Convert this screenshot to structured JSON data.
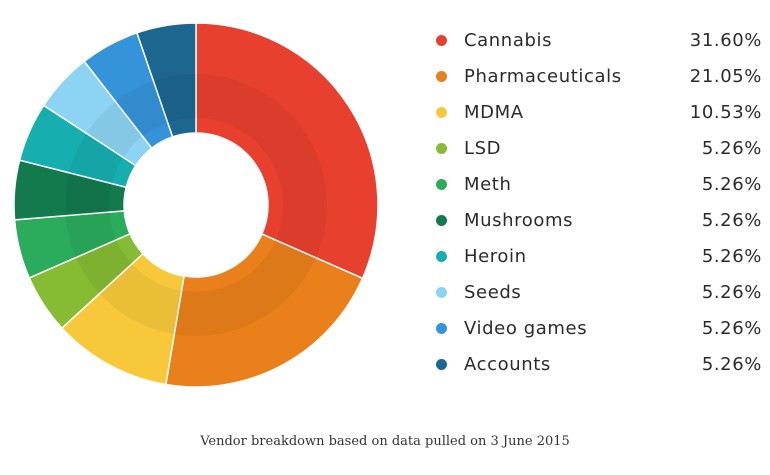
{
  "chart_data": {
    "type": "pie",
    "donut": true,
    "categories": [
      "Cannabis",
      "Pharmaceuticals",
      "MDMA",
      "LSD",
      "Meth",
      "Mushrooms",
      "Heroin",
      "Seeds",
      "Video games",
      "Accounts"
    ],
    "values": [
      31.6,
      21.05,
      10.53,
      5.26,
      5.26,
      5.26,
      5.26,
      5.26,
      5.26,
      5.26
    ],
    "value_labels": [
      "31.60%",
      "21.05%",
      "10.53%",
      "5.26%",
      "5.26%",
      "5.26%",
      "5.26%",
      "5.26%",
      "5.26%",
      "5.26%"
    ],
    "colors": [
      "#e8402f",
      "#e9801b",
      "#f7c93a",
      "#86bb34",
      "#2bab5c",
      "#137a4e",
      "#17aeb0",
      "#8dd3f3",
      "#3493d9",
      "#1d6690"
    ],
    "legend_position": "right",
    "caption": "Vendor breakdown based on data pulled on 3 June 2015"
  }
}
